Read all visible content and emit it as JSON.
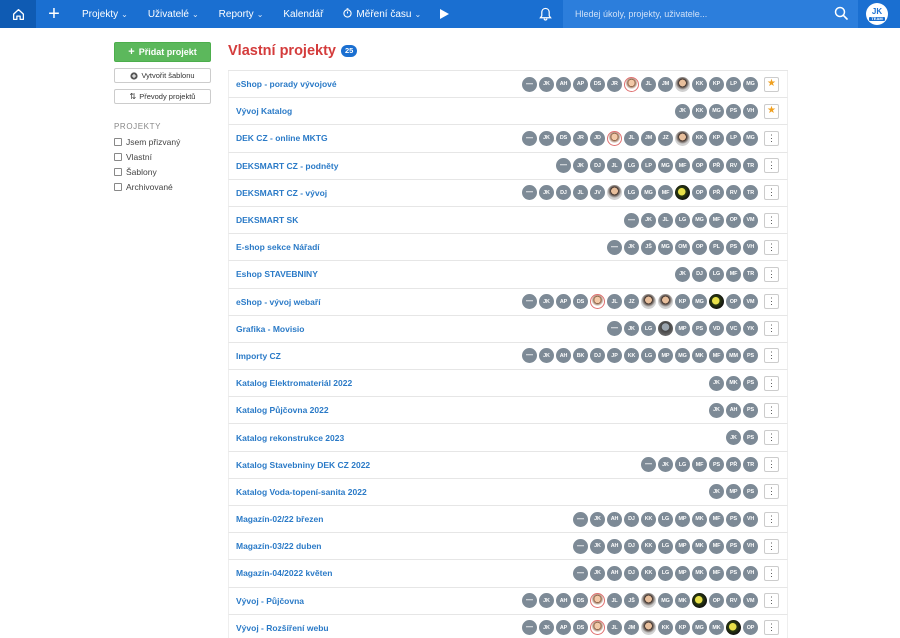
{
  "topbar": {
    "menu": [
      {
        "label": "Projekty",
        "chevron": true
      },
      {
        "label": "Uživatelé",
        "chevron": true
      },
      {
        "label": "Reporty",
        "chevron": true
      },
      {
        "label": "Kalendář",
        "chevron": false
      },
      {
        "label": "Měření času",
        "chevron": true
      }
    ],
    "search_placeholder": "Hledej úkoly, projekty, uživatele...",
    "user_initials": "JK",
    "user_badge": "TEAM"
  },
  "sidebar": {
    "add_label": "Přidat projekt",
    "template_label": "Vytvořit šablonu",
    "transfer_label": "Převody projektů",
    "heading": "PROJEKTY",
    "filters": [
      "Jsem přizvaný",
      "Vlastní",
      "Šablony",
      "Archivované"
    ]
  },
  "main": {
    "title": "Vlastní projekty",
    "count": "25",
    "projects": [
      {
        "name": "eShop - porady vývojové",
        "action": "star",
        "avatars": [
          "—",
          "JK",
          "AH",
          "AP",
          "DS",
          "JR",
          "@a",
          "JL",
          "JM",
          "@b",
          "KK",
          "KP",
          "LP",
          "MG"
        ]
      },
      {
        "name": "Vývoj Katalog",
        "action": "star",
        "avatars": [
          "JK",
          "KK",
          "MG",
          "PS",
          "VH"
        ]
      },
      {
        "name": "DEK CZ - online MKTG",
        "action": "menu",
        "avatars": [
          "—",
          "JK",
          "DS",
          "JR",
          "JD",
          "@a",
          "JL",
          "JM",
          "JZ",
          "@b",
          "KK",
          "KP",
          "LP",
          "MG"
        ]
      },
      {
        "name": "DEKSMART CZ - podněty",
        "action": "menu",
        "avatars": [
          "—",
          "JK",
          "DJ",
          "JL",
          "LG",
          "LP",
          "MG",
          "MF",
          "OP",
          "PŘ",
          "RV",
          "TR"
        ]
      },
      {
        "name": "DEKSMART CZ - vývoj",
        "action": "menu",
        "avatars": [
          "—",
          "JK",
          "DJ",
          "JL",
          "JV",
          "@b",
          "LG",
          "MG",
          "MF",
          "@c",
          "OP",
          "PŘ",
          "RV",
          "TR"
        ]
      },
      {
        "name": "DEKSMART SK",
        "action": "menu",
        "avatars": [
          "—",
          "JK",
          "JL",
          "LG",
          "MG",
          "MF",
          "OP",
          "VM"
        ]
      },
      {
        "name": "E-shop sekce Nářadí",
        "action": "menu",
        "avatars": [
          "—",
          "JK",
          "JŠ",
          "MG",
          "OM",
          "OP",
          "PL",
          "PS",
          "VH"
        ]
      },
      {
        "name": "Eshop STAVEBNINY",
        "action": "menu",
        "avatars": [
          "JK",
          "DJ",
          "LG",
          "MF",
          "TR"
        ]
      },
      {
        "name": "eShop - vývoj webaří",
        "action": "menu",
        "avatars": [
          "—",
          "JK",
          "AP",
          "DS",
          "@a",
          "JL",
          "JZ",
          "@b",
          "@b",
          "KP",
          "MG",
          "@c",
          "OP",
          "VM"
        ]
      },
      {
        "name": "Grafika - Movisio",
        "action": "menu",
        "avatars": [
          "—",
          "JK",
          "LG",
          "@d",
          "MP",
          "PS",
          "VD",
          "VC",
          "YK"
        ]
      },
      {
        "name": "Importy CZ",
        "action": "menu",
        "avatars": [
          "—",
          "JK",
          "AH",
          "BK",
          "DJ",
          "JP",
          "KK",
          "LG",
          "MP",
          "MG",
          "MK",
          "MF",
          "MM",
          "PS"
        ]
      },
      {
        "name": "Katalog Elektromateriál 2022",
        "action": "menu",
        "avatars": [
          "JK",
          "MK",
          "PS"
        ]
      },
      {
        "name": "Katalog Půjčovna 2022",
        "action": "menu",
        "avatars": [
          "JK",
          "AH",
          "PS"
        ]
      },
      {
        "name": "Katalog rekonstrukce 2023",
        "action": "menu",
        "avatars": [
          "JK",
          "PS"
        ]
      },
      {
        "name": "Katalog Stavebniny DEK CZ 2022",
        "action": "menu",
        "avatars": [
          "—",
          "JK",
          "LG",
          "MF",
          "PS",
          "PŘ",
          "TR"
        ]
      },
      {
        "name": "Katalog Voda-topení-sanita 2022",
        "action": "menu",
        "avatars": [
          "JK",
          "MP",
          "PS"
        ]
      },
      {
        "name": "Magazín-02/22 březen",
        "action": "menu",
        "avatars": [
          "—",
          "JK",
          "AH",
          "DJ",
          "KK",
          "LG",
          "MP",
          "MK",
          "MF",
          "PS",
          "VH"
        ]
      },
      {
        "name": "Magazín-03/22 duben",
        "action": "menu",
        "avatars": [
          "—",
          "JK",
          "AH",
          "DJ",
          "KK",
          "LG",
          "MP",
          "MK",
          "MF",
          "PS",
          "VH"
        ]
      },
      {
        "name": "Magazín-04/2022 květen",
        "action": "menu",
        "avatars": [
          "—",
          "JK",
          "AH",
          "DJ",
          "KK",
          "LG",
          "MP",
          "MK",
          "MF",
          "PS",
          "VH"
        ]
      },
      {
        "name": "Vývoj - Půjčovna",
        "action": "menu",
        "avatars": [
          "—",
          "JK",
          "AH",
          "DS",
          "@a",
          "JL",
          "JŠ",
          "@b",
          "MG",
          "MK",
          "@c",
          "OP",
          "RV",
          "VM"
        ]
      },
      {
        "name": "Vývoj - Rozšíření webu",
        "action": "menu",
        "avatars": [
          "—",
          "JK",
          "AP",
          "DS",
          "@a",
          "JL",
          "JM",
          "@b",
          "KK",
          "KP",
          "MG",
          "MK",
          "@c",
          "OP"
        ]
      }
    ]
  }
}
